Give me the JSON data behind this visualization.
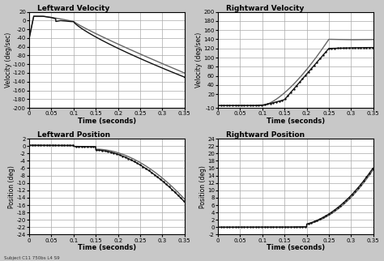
{
  "title_tl": "Leftward Velocity",
  "title_tr": "Rightward Velocity",
  "title_bl": "Leftward Position",
  "title_br": "Rightward Position",
  "xlabel": "Time (seconds)",
  "ylabel_vel": "Velocity (deg/sec)",
  "ylabel_pos": "Position (deg)",
  "xlim": [
    0,
    0.35
  ],
  "ylim_tl": [
    -200,
    20
  ],
  "ylim_tr": [
    -10,
    200
  ],
  "ylim_bl": [
    -24,
    2
  ],
  "ylim_br": [
    -2,
    24
  ],
  "yticks_tl": [
    20,
    0,
    -20,
    -40,
    -60,
    -80,
    -100,
    -120,
    -140,
    -160,
    -180,
    -200
  ],
  "yticks_tr": [
    -10,
    20,
    40,
    60,
    80,
    100,
    120,
    140,
    160,
    180,
    200
  ],
  "yticks_bl": [
    2,
    0,
    -2,
    -4,
    -6,
    -8,
    -10,
    -12,
    -14,
    -16,
    -18,
    -20,
    -22,
    -24
  ],
  "yticks_br": [
    -2,
    0,
    2,
    4,
    6,
    8,
    10,
    12,
    14,
    16,
    18,
    20,
    22,
    24
  ],
  "xticks": [
    0,
    0.05,
    0.1,
    0.15,
    0.2,
    0.25,
    0.3,
    0.35
  ],
  "footer": "Subject C11 750bs L4 S9",
  "bg_color": "#c8c8c8",
  "plot_bg": "#ffffff",
  "grid_color": "#aaaaaa",
  "line_color1": "#111111",
  "line_color2": "#666666"
}
